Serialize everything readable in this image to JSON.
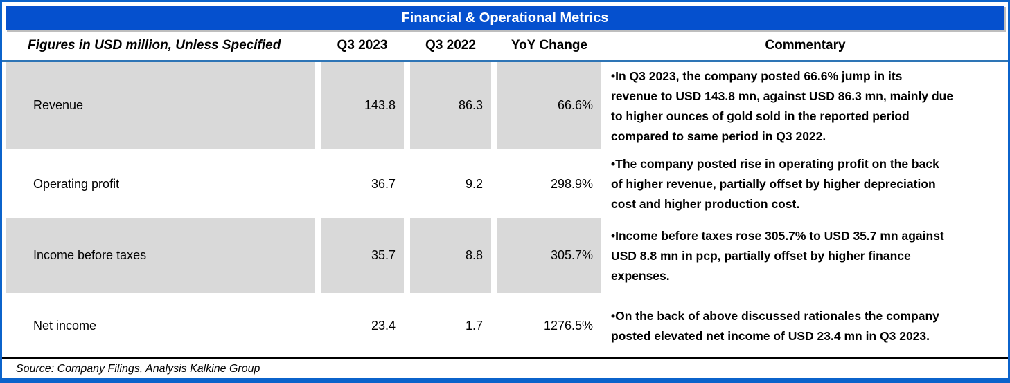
{
  "title_bar": {
    "title": "Financial & Operational Metrics"
  },
  "header": {
    "label": "Figures in USD million, Unless Specified",
    "q3_2023": "Q3 2023",
    "q3_2022": "Q3 2022",
    "yoy": "YoY Change",
    "commentary": "Commentary"
  },
  "rows": [
    {
      "label": "Revenue",
      "q3_2023": "143.8",
      "q3_2022": "86.3",
      "yoy": "66.6%",
      "shaded": true,
      "commentary": [
        "•In Q3 2023, the company posted 66.6% jump in its",
        "revenue to USD 143.8 mn, against USD 86.3 mn, mainly due",
        "to higher ounces of gold sold in the reported period",
        "compared to same period in Q3 2022."
      ]
    },
    {
      "label": "Operating profit",
      "q3_2023": "36.7",
      "q3_2022": "9.2",
      "yoy": "298.9%",
      "shaded": false,
      "commentary": [
        "•The company posted rise in operating profit on the back",
        "of higher revenue, partially offset by higher depreciation",
        "cost and higher production cost."
      ]
    },
    {
      "label": "Income before taxes",
      "q3_2023": "35.7",
      "q3_2022": "8.8",
      "yoy": "305.7%",
      "shaded": true,
      "commentary": [
        "•Income before taxes rose 305.7% to USD 35.7 mn against",
        "USD 8.8 mn in pcp, partially offset by higher finance",
        "expenses."
      ]
    },
    {
      "label": "Net income",
      "q3_2023": "23.4",
      "q3_2022": "1.7",
      "yoy": "1276.5%",
      "shaded": false,
      "commentary": [
        "•On the back of above discussed rationales the company",
        "posted elevated net income of USD 23.4 mn in Q3 2023."
      ]
    }
  ],
  "footer": {
    "source": "Source: Company Filings, Analysis Kalkine Group"
  },
  "colors": {
    "title_bg": "#0550ce",
    "title_text": "#ffffff",
    "frame_border": "#0b63cb",
    "header_underline": "#2e75b6",
    "row_shade": "#d9d9d9",
    "text": "#000000"
  },
  "chart_data": {
    "type": "table",
    "title": "Financial & Operational Metrics",
    "columns": [
      "Figures in USD million, Unless Specified",
      "Q3 2023",
      "Q3 2022",
      "YoY Change",
      "Commentary"
    ],
    "rows": [
      [
        "Revenue",
        143.8,
        86.3,
        "66.6%",
        "In Q3 2023, the company posted 66.6% jump in its revenue to USD 143.8 mn, against USD 86.3 mn, mainly due to higher ounces of gold sold in the reported period compared to same period in Q3 2022."
      ],
      [
        "Operating profit",
        36.7,
        9.2,
        "298.9%",
        "The company posted rise in operating profit on the back of higher revenue, partially offset by higher depreciation cost and higher production cost."
      ],
      [
        "Income before taxes",
        35.7,
        8.8,
        "305.7%",
        "Income before taxes rose 305.7% to USD 35.7 mn against USD 8.8 mn in pcp, partially offset by higher finance expenses."
      ],
      [
        "Net income",
        23.4,
        1.7,
        "1276.5%",
        "On the back of above discussed rationales the company posted elevated net income of USD 23.4 mn in Q3 2023."
      ]
    ],
    "source": "Source: Company Filings, Analysis Kalkine Group",
    "layout": {
      "shaded_rows": [
        0,
        2
      ],
      "values_unit": "USD million"
    }
  }
}
